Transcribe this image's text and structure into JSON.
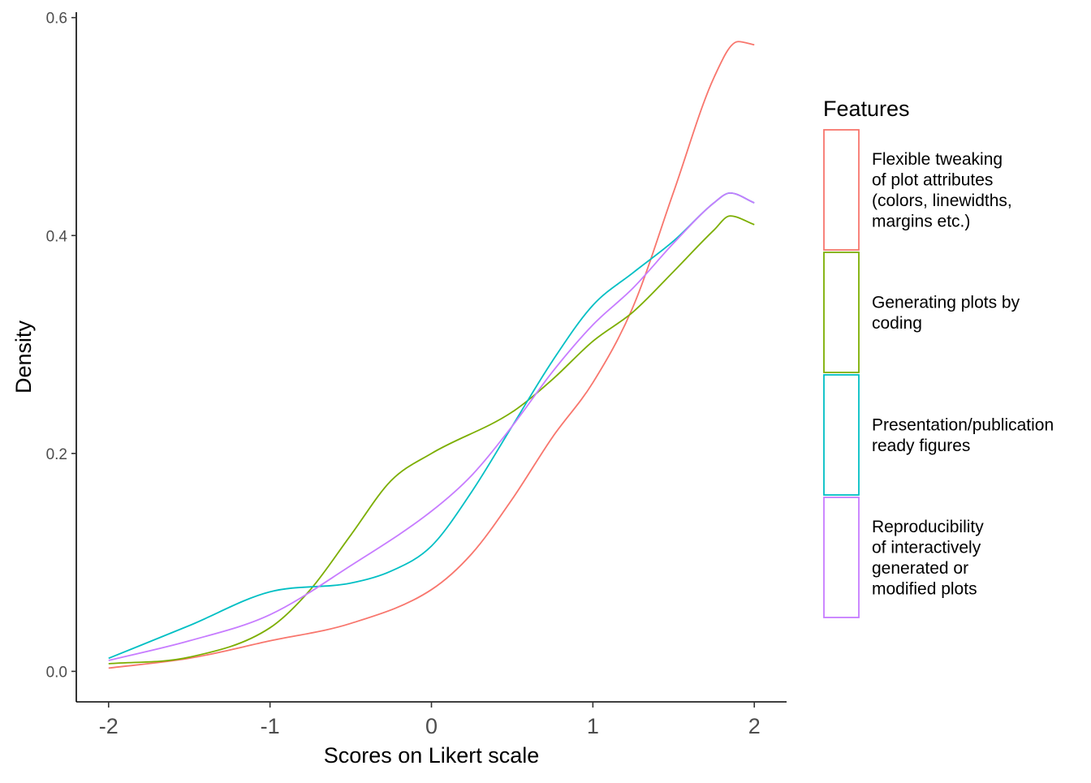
{
  "chart_data": {
    "type": "line",
    "xlabel": "Scores on Likert scale",
    "ylabel": "Density",
    "xlim": [
      -2.2,
      2.2
    ],
    "ylim": [
      -0.028,
      0.605
    ],
    "x_ticks": [
      -2,
      -1,
      0,
      1,
      2
    ],
    "x_tick_labels": [
      "-2",
      "-1",
      "0",
      "1",
      "2"
    ],
    "y_ticks": [
      0.0,
      0.2,
      0.4,
      0.6
    ],
    "y_tick_labels": [
      "0.0",
      "0.2",
      "0.4",
      "0.6"
    ],
    "grid": false,
    "legend": {
      "title": "Features",
      "position": "right"
    },
    "series": [
      {
        "name": "Flexible tweaking of plot attributes (colors, linewidths, margins etc.)",
        "label_lines": [
          "Flexible tweaking",
          "of plot attributes",
          "(colors, linewidths,",
          "margins etc.)"
        ],
        "color": "#F8766D",
        "points": [
          [
            -2,
            0.003
          ],
          [
            -1.5,
            0.012
          ],
          [
            -1,
            0.028
          ],
          [
            -0.5,
            0.044
          ],
          [
            0,
            0.075
          ],
          [
            0.25,
            0.108
          ],
          [
            0.5,
            0.158
          ],
          [
            0.75,
            0.215
          ],
          [
            1,
            0.265
          ],
          [
            1.25,
            0.335
          ],
          [
            1.5,
            0.44
          ],
          [
            1.75,
            0.545
          ],
          [
            1.9,
            0.578
          ],
          [
            2,
            0.575
          ]
        ]
      },
      {
        "name": "Generating plots by coding",
        "label_lines": [
          "Generating plots by",
          "coding"
        ],
        "color": "#7CAE00",
        "points": [
          [
            -2,
            0.007
          ],
          [
            -1.5,
            0.013
          ],
          [
            -1,
            0.04
          ],
          [
            -0.75,
            0.075
          ],
          [
            -0.5,
            0.125
          ],
          [
            -0.25,
            0.175
          ],
          [
            0,
            0.2
          ],
          [
            0.5,
            0.238
          ],
          [
            0.75,
            0.268
          ],
          [
            1,
            0.303
          ],
          [
            1.25,
            0.33
          ],
          [
            1.5,
            0.367
          ],
          [
            1.75,
            0.405
          ],
          [
            1.85,
            0.418
          ],
          [
            2,
            0.41
          ]
        ]
      },
      {
        "name": "Presentation/publication ready figures",
        "label_lines": [
          "Presentation/publication",
          "ready figures"
        ],
        "color": "#00BFC4",
        "points": [
          [
            -2,
            0.012
          ],
          [
            -1.5,
            0.042
          ],
          [
            -1,
            0.073
          ],
          [
            -0.5,
            0.081
          ],
          [
            -0.25,
            0.092
          ],
          [
            0,
            0.115
          ],
          [
            0.25,
            0.165
          ],
          [
            0.5,
            0.225
          ],
          [
            0.75,
            0.285
          ],
          [
            1,
            0.336
          ],
          [
            1.25,
            0.366
          ],
          [
            1.5,
            0.395
          ],
          [
            1.75,
            0.43
          ],
          [
            1.85,
            0.439
          ],
          [
            2,
            0.43
          ]
        ]
      },
      {
        "name": "Reproducibility of interactively generated or modified plots",
        "label_lines": [
          "Reproducibility",
          "of interactively",
          "generated or",
          "modified plots"
        ],
        "color": "#C77CFF",
        "points": [
          [
            -2,
            0.01
          ],
          [
            -1.5,
            0.028
          ],
          [
            -1,
            0.052
          ],
          [
            -0.5,
            0.097
          ],
          [
            0,
            0.147
          ],
          [
            0.25,
            0.18
          ],
          [
            0.5,
            0.225
          ],
          [
            0.75,
            0.275
          ],
          [
            1,
            0.318
          ],
          [
            1.25,
            0.352
          ],
          [
            1.5,
            0.393
          ],
          [
            1.75,
            0.43
          ],
          [
            1.85,
            0.439
          ],
          [
            2,
            0.43
          ]
        ]
      }
    ]
  }
}
